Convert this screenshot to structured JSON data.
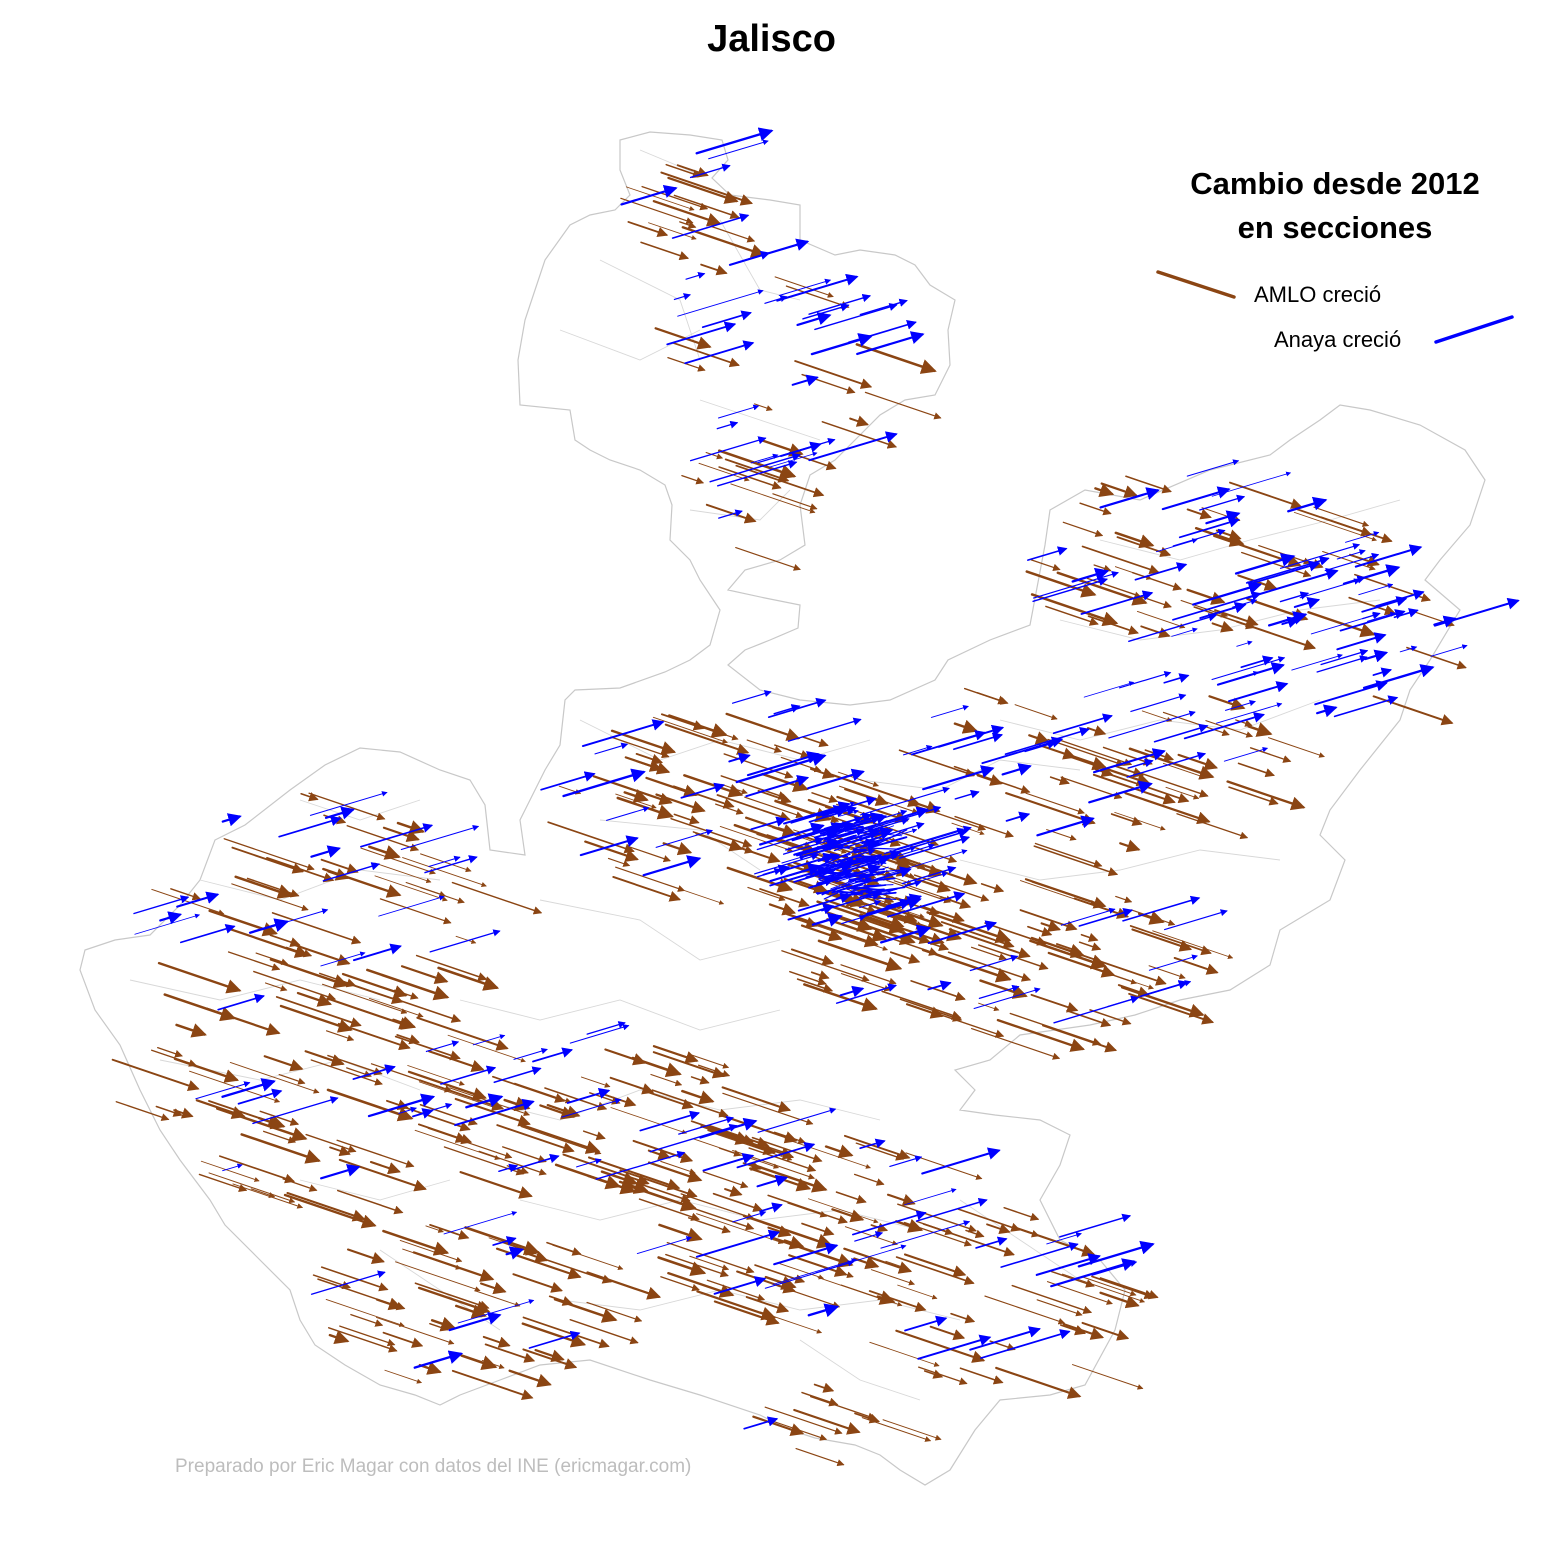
{
  "title": "Jalisco",
  "legend": {
    "title": "Cambio desde 2012 en secciones",
    "amlo": {
      "label": "AMLO creció",
      "color": "#8B4513"
    },
    "anaya": {
      "label": "Anaya creció",
      "color": "#0000FF"
    }
  },
  "credit": "Preparado por Eric Magar con datos del INE (ericmagar.com)",
  "colors": {
    "boundary": "#c8c8c8",
    "amlo": "#8B4513",
    "anaya": "#0000FF"
  }
}
